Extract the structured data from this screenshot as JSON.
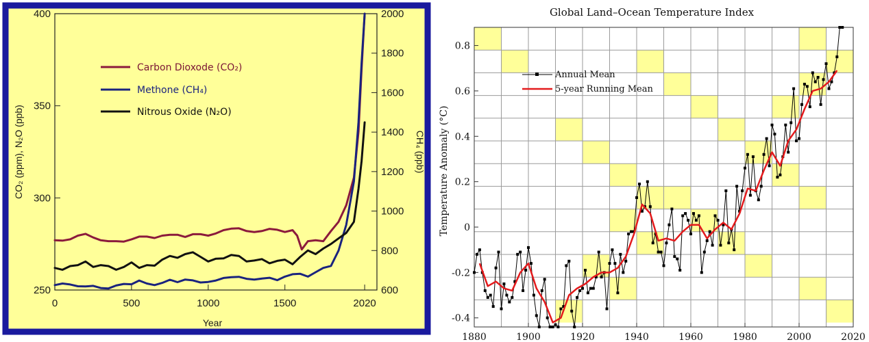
{
  "chart_data": [
    {
      "type": "line",
      "title": "",
      "xlabel": "Year",
      "ylabel_left": "CO₂ (ppm), N₂O (ppb)",
      "ylabel_right": "CH₄ (ppb)",
      "xlim": [
        0,
        2100
      ],
      "ylim_left": [
        250,
        400
      ],
      "ylim_right": [
        600,
        2000
      ],
      "x_ticks": [
        "0",
        "500",
        "1000",
        "1500",
        "2020"
      ],
      "y_ticks_left": [
        "250",
        "300",
        "350",
        "400"
      ],
      "y_ticks_right": [
        "600",
        "800",
        "1000",
        "1200",
        "1400",
        "1600",
        "1800",
        "2000"
      ],
      "background": "#ffff99",
      "frame_color": "#1a1a9e",
      "legend_position": "top-left",
      "series": [
        {
          "name": "Carbon Dioxode (CO₂)",
          "axis": "left",
          "color": "#8b1a3c",
          "x": [
            0,
            50,
            100,
            150,
            200,
            250,
            300,
            350,
            400,
            450,
            500,
            550,
            600,
            650,
            700,
            750,
            800,
            850,
            900,
            950,
            1000,
            1050,
            1100,
            1150,
            1200,
            1250,
            1300,
            1350,
            1400,
            1450,
            1500,
            1550,
            1580,
            1610,
            1650,
            1700,
            1750,
            1800,
            1850,
            1900,
            1950,
            1980,
            2000,
            2020
          ],
          "values": [
            277,
            276.8,
            277.5,
            279.5,
            280.5,
            278.5,
            277,
            276.5,
            276.5,
            276.3,
            277.5,
            279,
            279,
            278.2,
            279.5,
            280,
            280,
            278.8,
            280.3,
            280.3,
            279.5,
            280.7,
            282.5,
            283.3,
            283.5,
            282,
            281.5,
            282,
            283.2,
            282.7,
            281.5,
            282.5,
            279.5,
            272,
            276.5,
            277,
            276.5,
            282,
            287,
            296,
            311,
            336,
            370,
            400
          ]
        },
        {
          "name": "Methone (CH₄)",
          "axis": "right",
          "color": "#1a237e",
          "x": [
            0,
            50,
            100,
            150,
            200,
            250,
            300,
            350,
            400,
            450,
            500,
            550,
            600,
            650,
            700,
            750,
            800,
            850,
            900,
            950,
            1000,
            1050,
            1100,
            1150,
            1200,
            1250,
            1300,
            1350,
            1400,
            1450,
            1500,
            1550,
            1600,
            1650,
            1700,
            1750,
            1800,
            1850,
            1900,
            1950,
            1980,
            2000,
            2020
          ],
          "values": [
            625,
            633,
            628,
            619,
            618,
            621,
            610,
            608,
            623,
            631,
            629,
            648,
            633,
            625,
            636,
            652,
            640,
            653,
            649,
            638,
            641,
            648,
            661,
            665,
            667,
            657,
            653,
            658,
            662,
            650,
            668,
            680,
            682,
            668,
            690,
            712,
            722,
            800,
            930,
            1150,
            1450,
            1750,
            2000
          ]
        },
        {
          "name": "Nitrous Oxide (N₂O)",
          "axis": "left",
          "color": "#111111",
          "x": [
            0,
            50,
            100,
            150,
            200,
            250,
            300,
            350,
            400,
            450,
            500,
            550,
            600,
            650,
            700,
            750,
            800,
            850,
            900,
            950,
            1000,
            1050,
            1100,
            1150,
            1200,
            1250,
            1300,
            1350,
            1400,
            1450,
            1500,
            1550,
            1600,
            1650,
            1700,
            1750,
            1800,
            1850,
            1900,
            1950,
            1980,
            2000,
            2020
          ],
          "values": [
            262,
            261,
            263,
            263.5,
            265.5,
            262.5,
            263.5,
            263,
            261,
            262.5,
            265,
            262,
            263.5,
            263.2,
            266.5,
            268.5,
            267.5,
            269.5,
            270.5,
            268,
            265.5,
            267,
            267.2,
            269,
            268.5,
            265.5,
            266,
            266.8,
            264.5,
            265.8,
            266.5,
            264,
            268,
            271.5,
            269.5,
            272.5,
            275,
            278,
            281,
            287,
            305,
            320,
            341
          ]
        }
      ]
    },
    {
      "type": "line",
      "title": "Global Land–Ocean Temperature Index",
      "xlabel": "",
      "ylabel": "Temperature Anomaly (°C)",
      "xlim": [
        1880,
        2020
      ],
      "ylim": [
        -0.44,
        0.88
      ],
      "x_ticks": [
        "1880",
        "1900",
        "1920",
        "1940",
        "1960",
        "1980",
        "2000",
        "2020"
      ],
      "y_ticks": [
        "-0.4",
        "-0.2",
        "0",
        "0.2",
        "0.4",
        "0.6",
        "0.8"
      ],
      "grid": true,
      "highlight_color": "#ffff99",
      "legend_position": "top-left",
      "series": [
        {
          "name": "Annual Mean",
          "color": "#000000",
          "marker": "square",
          "x": [
            1880,
            1881,
            1882,
            1883,
            1884,
            1885,
            1886,
            1887,
            1888,
            1889,
            1890,
            1891,
            1892,
            1893,
            1894,
            1895,
            1896,
            1897,
            1898,
            1899,
            1900,
            1901,
            1902,
            1903,
            1904,
            1905,
            1906,
            1907,
            1908,
            1909,
            1910,
            1911,
            1912,
            1913,
            1914,
            1915,
            1916,
            1917,
            1918,
            1919,
            1920,
            1921,
            1922,
            1923,
            1924,
            1925,
            1926,
            1927,
            1928,
            1929,
            1930,
            1931,
            1932,
            1933,
            1934,
            1935,
            1936,
            1937,
            1938,
            1939,
            1940,
            1941,
            1942,
            1943,
            1944,
            1945,
            1946,
            1947,
            1948,
            1949,
            1950,
            1951,
            1952,
            1953,
            1954,
            1955,
            1956,
            1957,
            1958,
            1959,
            1960,
            1961,
            1962,
            1963,
            1964,
            1965,
            1966,
            1967,
            1968,
            1969,
            1970,
            1971,
            1972,
            1973,
            1974,
            1975,
            1976,
            1977,
            1978,
            1979,
            1980,
            1981,
            1982,
            1983,
            1984,
            1985,
            1986,
            1987,
            1988,
            1989,
            1990,
            1991,
            1992,
            1993,
            1994,
            1995,
            1996,
            1997,
            1998,
            1999,
            2000,
            2001,
            2002,
            2003,
            2004,
            2005,
            2006,
            2007,
            2008,
            2009,
            2010,
            2011,
            2012,
            2013,
            2014,
            2015,
            2016
          ],
          "values": [
            -0.2,
            -0.12,
            -0.1,
            -0.2,
            -0.28,
            -0.31,
            -0.3,
            -0.35,
            -0.18,
            -0.11,
            -0.36,
            -0.25,
            -0.3,
            -0.33,
            -0.31,
            -0.24,
            -0.12,
            -0.11,
            -0.28,
            -0.19,
            -0.09,
            -0.16,
            -0.3,
            -0.39,
            -0.47,
            -0.28,
            -0.23,
            -0.4,
            -0.44,
            -0.48,
            -0.43,
            -0.44,
            -0.36,
            -0.35,
            -0.17,
            -0.15,
            -0.37,
            -0.47,
            -0.31,
            -0.28,
            -0.27,
            -0.19,
            -0.29,
            -0.27,
            -0.27,
            -0.22,
            -0.11,
            -0.22,
            -0.2,
            -0.36,
            -0.16,
            -0.1,
            -0.16,
            -0.29,
            -0.12,
            -0.2,
            -0.15,
            -0.03,
            -0.02,
            -0.02,
            0.13,
            0.19,
            0.07,
            0.09,
            0.2,
            0.09,
            -0.07,
            -0.03,
            -0.11,
            -0.11,
            -0.17,
            -0.07,
            0.01,
            0.08,
            -0.13,
            -0.14,
            -0.19,
            0.05,
            0.06,
            0.03,
            -0.03,
            0.06,
            0.03,
            0.05,
            -0.2,
            -0.11,
            -0.06,
            -0.02,
            -0.08,
            0.05,
            0.03,
            -0.08,
            0.01,
            0.16,
            -0.07,
            -0.01,
            -0.1,
            0.18,
            0.07,
            0.16,
            0.26,
            0.32,
            0.14,
            0.31,
            0.16,
            0.12,
            0.18,
            0.32,
            0.39,
            0.27,
            0.45,
            0.41,
            0.22,
            0.23,
            0.31,
            0.45,
            0.33,
            0.46,
            0.61,
            0.38,
            0.39,
            0.54,
            0.63,
            0.62,
            0.53,
            0.68,
            0.64,
            0.66,
            0.54,
            0.65,
            0.72,
            0.61,
            0.64,
            0.68,
            0.75,
            0.9,
            0.88
          ]
        },
        {
          "name": "5-year Running Mean",
          "color": "#e31a1c",
          "x": [
            1882,
            1885,
            1888,
            1891,
            1894,
            1897,
            1900,
            1903,
            1906,
            1909,
            1912,
            1915,
            1918,
            1921,
            1924,
            1927,
            1930,
            1933,
            1936,
            1939,
            1942,
            1945,
            1948,
            1951,
            1954,
            1957,
            1960,
            1963,
            1966,
            1969,
            1972,
            1975,
            1978,
            1981,
            1984,
            1987,
            1990,
            1993,
            1996,
            1999,
            2002,
            2005,
            2008,
            2011,
            2014
          ],
          "values": [
            -0.16,
            -0.26,
            -0.24,
            -0.27,
            -0.28,
            -0.2,
            -0.16,
            -0.27,
            -0.33,
            -0.42,
            -0.4,
            -0.3,
            -0.27,
            -0.25,
            -0.22,
            -0.2,
            -0.2,
            -0.18,
            -0.13,
            -0.03,
            0.1,
            0.06,
            -0.06,
            -0.05,
            -0.06,
            -0.02,
            0.01,
            0.01,
            -0.05,
            -0.01,
            0.02,
            -0.01,
            0.06,
            0.17,
            0.16,
            0.25,
            0.33,
            0.27,
            0.38,
            0.43,
            0.52,
            0.6,
            0.61,
            0.64,
            0.69
          ]
        }
      ]
    }
  ]
}
